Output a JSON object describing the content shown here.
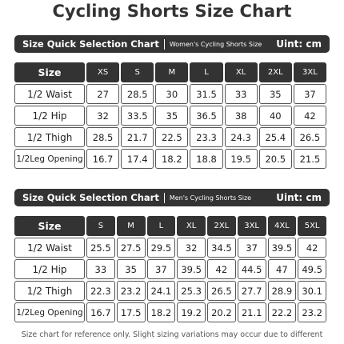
{
  "header": {
    "title": "Cycling Shorts Size Chart"
  },
  "sections": [
    {
      "bar_title": "Size Quick Selection Chart",
      "bar_subtitle": "Women's Cycling Shorts Size",
      "unit": "Uint: cm",
      "table": {
        "columns": [
          "Size",
          "XS",
          "S",
          "M",
          "L",
          "XL",
          "2XL",
          "3XL"
        ],
        "rows": [
          [
            "1/2 Waist",
            "27",
            "28.5",
            "30",
            "31.5",
            "33",
            "35",
            "37"
          ],
          [
            "1/2 Hip",
            "32",
            "33.5",
            "35",
            "36.5",
            "38",
            "40",
            "42"
          ],
          [
            "1/2 Thigh",
            "28.5",
            "21.7",
            "22.5",
            "23.3",
            "24.3",
            "25.4",
            "26.5"
          ],
          [
            "1/2Leg Opening",
            "16.7",
            "17.4",
            "18.2",
            "18.8",
            "19.5",
            "20.5",
            "21.5"
          ]
        ]
      }
    },
    {
      "bar_title": "Size Quick Selection Chart",
      "bar_subtitle": "Men's Cycling Shorts Size",
      "unit": "Uint: cm",
      "table": {
        "columns": [
          "Size",
          "S",
          "M",
          "L",
          "XL",
          "2XL",
          "3XL",
          "4XL",
          "5XL"
        ],
        "rows": [
          [
            "1/2 Waist",
            "25.5",
            "27.5",
            "29.5",
            "32",
            "34.5",
            "37",
            "39.5",
            "42"
          ],
          [
            "1/2 Hip",
            "33",
            "35",
            "37",
            "39.5",
            "42",
            "44.5",
            "47",
            "49.5"
          ],
          [
            "1/2 Thigh",
            "22.3",
            "23.2",
            "24.1",
            "25.3",
            "26.5",
            "27.7",
            "28.9",
            "30.1"
          ],
          [
            "1/2Leg Opening",
            "16.7",
            "17.5",
            "18.2",
            "19.2",
            "20.2",
            "21.1",
            "22.2",
            "23.2"
          ]
        ]
      }
    }
  ],
  "footer": {
    "note": "Size chart for reference only. Slight sizing variations may occur due to different"
  }
}
